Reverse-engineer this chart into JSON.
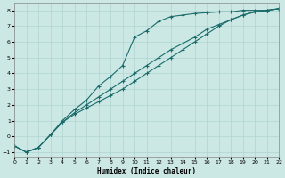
{
  "xlabel": "Humidex (Indice chaleur)",
  "ylabel": "",
  "bg_color": "#cce8e5",
  "grid_color": "#afd4d0",
  "line_color": "#1a6b6b",
  "xlim": [
    0,
    22
  ],
  "ylim": [
    -1.3,
    8.5
  ],
  "xticks": [
    0,
    1,
    2,
    3,
    4,
    5,
    6,
    7,
    8,
    9,
    10,
    11,
    12,
    13,
    14,
    15,
    16,
    17,
    18,
    19,
    20,
    21,
    22
  ],
  "yticks": [
    -1,
    0,
    1,
    2,
    3,
    4,
    5,
    6,
    7,
    8
  ],
  "line1_x": [
    0,
    1,
    2,
    3,
    4,
    5,
    6,
    7,
    8,
    9,
    10,
    11,
    12,
    13,
    14,
    15,
    16,
    17,
    18,
    19,
    20,
    21,
    22
  ],
  "line1_y": [
    -0.6,
    -1.0,
    -0.7,
    0.1,
    1.0,
    1.7,
    2.3,
    3.2,
    3.8,
    4.5,
    6.3,
    6.7,
    7.3,
    7.6,
    7.7,
    7.8,
    7.85,
    7.9,
    7.9,
    8.0,
    8.0,
    8.0,
    8.1
  ],
  "line2_x": [
    0,
    1,
    2,
    3,
    4,
    5,
    6,
    7,
    8,
    9,
    10,
    11,
    12,
    13,
    14,
    15,
    16,
    17,
    18,
    19,
    20,
    21,
    22
  ],
  "line2_y": [
    -0.6,
    -1.0,
    -0.7,
    0.1,
    0.9,
    1.4,
    1.8,
    2.2,
    2.6,
    3.0,
    3.5,
    4.0,
    4.5,
    5.0,
    5.5,
    6.0,
    6.5,
    7.0,
    7.4,
    7.7,
    7.9,
    8.0,
    8.1
  ],
  "line3_x": [
    0,
    1,
    2,
    3,
    4,
    5,
    6,
    7,
    8,
    9,
    10,
    11,
    12,
    13,
    14,
    15,
    16,
    17,
    18,
    19,
    20,
    21,
    22
  ],
  "line3_y": [
    -0.6,
    -1.0,
    -0.7,
    0.1,
    0.9,
    1.5,
    2.0,
    2.5,
    3.0,
    3.5,
    4.0,
    4.5,
    5.0,
    5.5,
    5.9,
    6.3,
    6.8,
    7.1,
    7.4,
    7.7,
    7.9,
    8.0,
    8.1
  ]
}
